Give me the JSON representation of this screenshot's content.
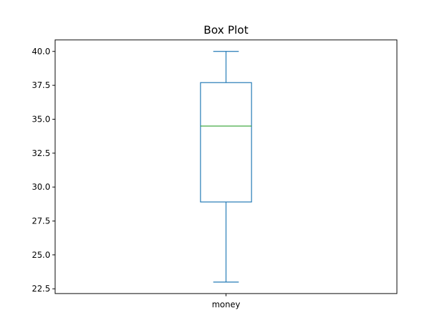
{
  "chart_data": {
    "type": "box",
    "title": "Box Plot",
    "xlabel": "",
    "ylabel": "",
    "categories": [
      "money"
    ],
    "series": [
      {
        "category": "money",
        "whisker_low": 23.0,
        "q1": 28.9,
        "median": 34.5,
        "q3": 37.7,
        "whisker_high": 40.0
      }
    ],
    "ylim": [
      22.15,
      40.85
    ],
    "yticks": [
      22.5,
      25.0,
      27.5,
      30.0,
      32.5,
      35.0,
      37.5,
      40.0
    ],
    "ytick_labels": [
      "22.5",
      "25.0",
      "27.5",
      "30.0",
      "32.5",
      "35.0",
      "37.5",
      "40.0"
    ],
    "grid": false,
    "colors": {
      "box": "#1f77b4",
      "median": "#2ca02c",
      "axes": "#000000"
    }
  }
}
